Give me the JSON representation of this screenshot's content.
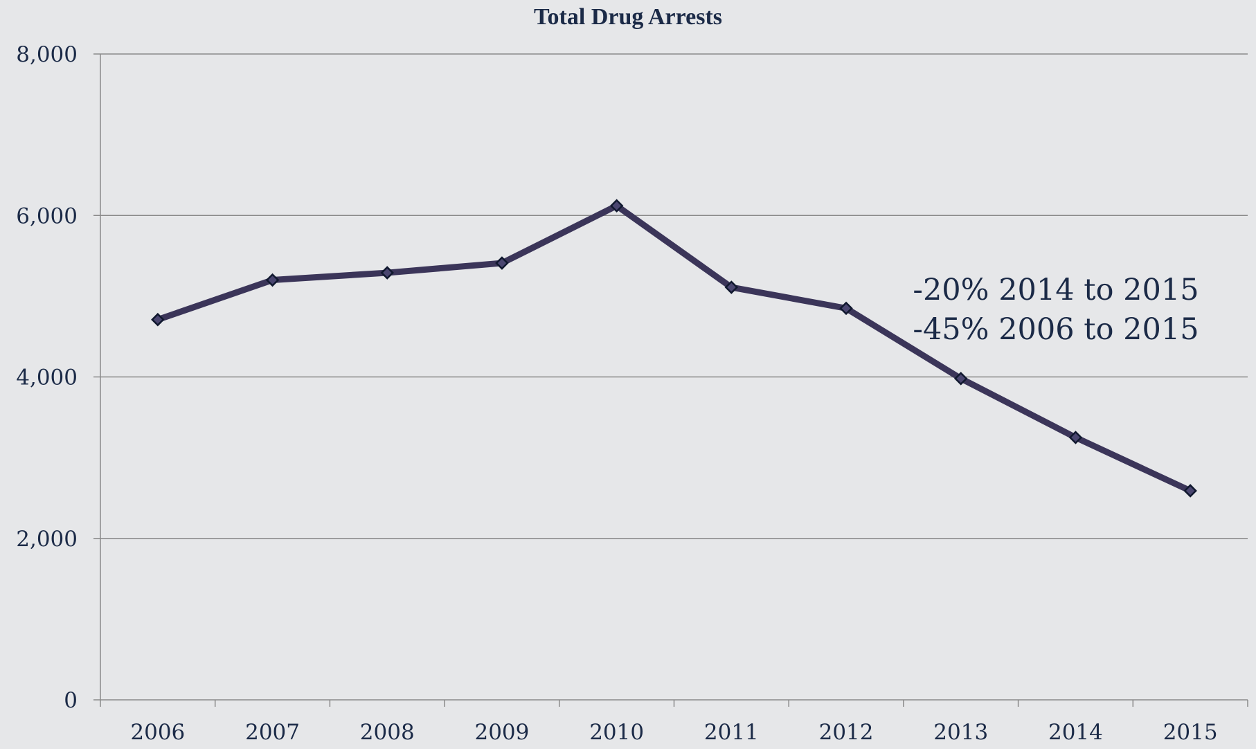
{
  "chart_data": {
    "type": "line",
    "title": "Total Drug Arrests",
    "xlabel": "",
    "ylabel": "",
    "categories": [
      "2006",
      "2007",
      "2008",
      "2009",
      "2010",
      "2011",
      "2012",
      "2013",
      "2014",
      "2015"
    ],
    "series": [
      {
        "values": [
          4710,
          5200,
          5290,
          5410,
          6120,
          5110,
          4850,
          3980,
          3250,
          2590
        ],
        "color": "#3b3559",
        "marker": "diamond"
      }
    ],
    "ylim": [
      0,
      8000
    ],
    "yticks": [
      0,
      2000,
      4000,
      6000,
      8000
    ],
    "ytick_labels": [
      "0",
      "2,000",
      "4,000",
      "6,000",
      "8,000"
    ],
    "grid": true,
    "legend": "none",
    "annotations": [
      "-20% 2014 to 2015",
      "-45% 2006 to 2015"
    ]
  },
  "colors": {
    "background": "#e6e7e9",
    "gridline": "#8a8a8a",
    "line": "#3b3559",
    "text": "#1b2a47"
  }
}
